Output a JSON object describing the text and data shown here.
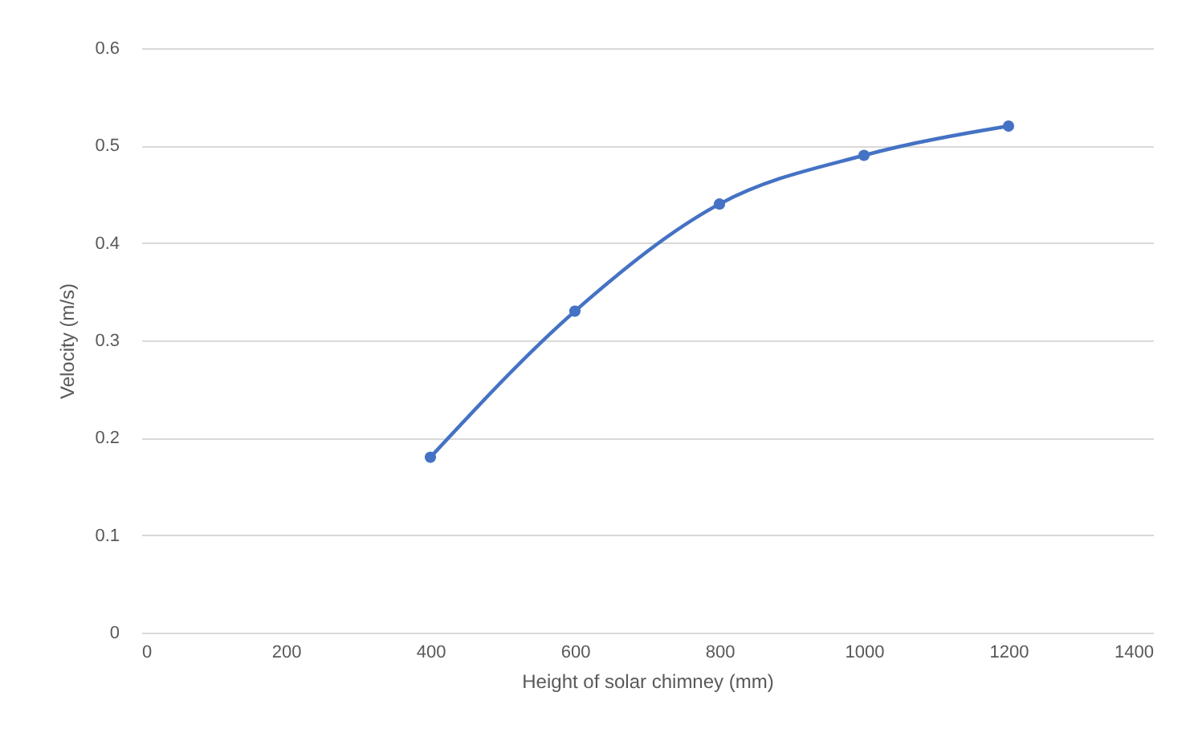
{
  "chart_data": {
    "type": "line",
    "xlabel": "Height of solar chimney (mm)",
    "ylabel": "Velocity (m/s)",
    "x": [
      400,
      600,
      800,
      1000,
      1200
    ],
    "series": [
      {
        "color": "#4472c4",
        "values": [
          0.18,
          0.33,
          0.44,
          0.49,
          0.52
        ]
      }
    ],
    "xlim": [
      0,
      1400
    ],
    "xticks": [
      0,
      200,
      400,
      600,
      800,
      1000,
      1200,
      1400
    ],
    "ylim": [
      0,
      0.6
    ],
    "yticks": [
      0,
      0.1,
      0.2,
      0.3,
      0.4,
      0.5,
      0.6
    ],
    "grid": "y",
    "marker": "circle",
    "line_style": "solid"
  }
}
